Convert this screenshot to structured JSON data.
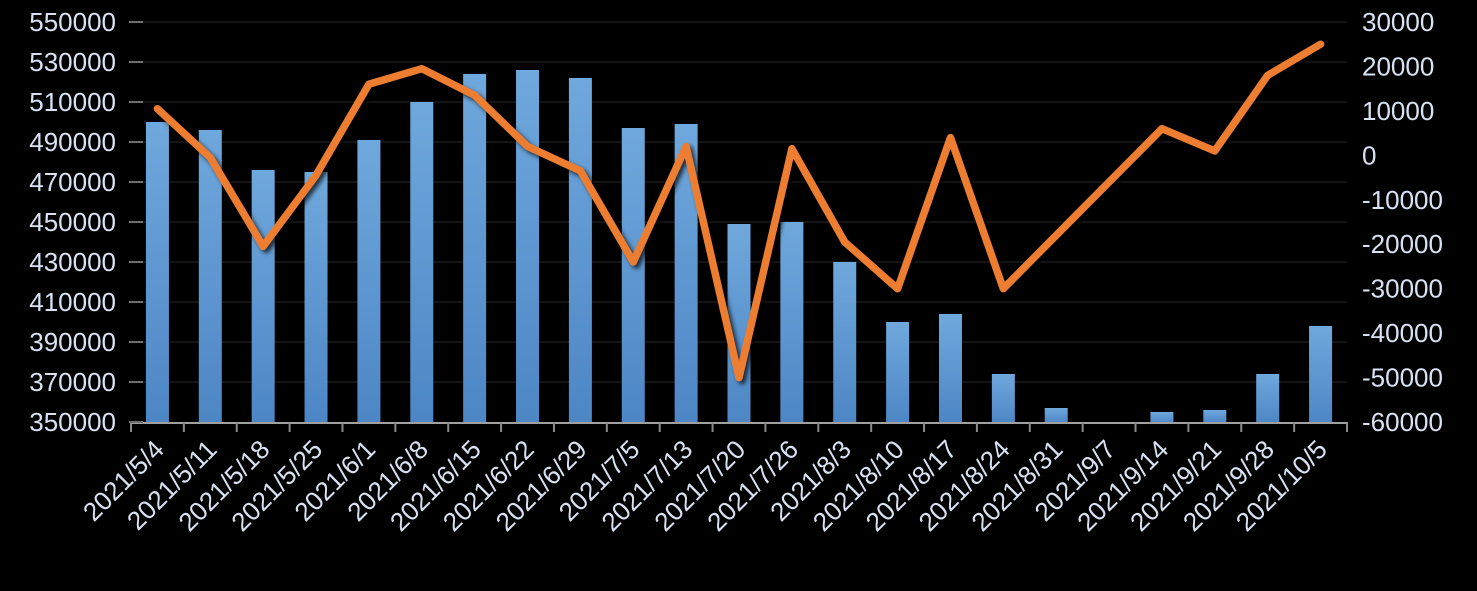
{
  "chart_data": {
    "type": "bar",
    "subtype": "combo-bar-line-dual-axis",
    "title": "",
    "xlabel": "",
    "ylabel": "",
    "background": "#000000",
    "grid": true,
    "legend": "none",
    "categories": [
      "2021/5/4",
      "2021/5/11",
      "2021/5/18",
      "2021/5/25",
      "2021/6/1",
      "2021/6/8",
      "2021/6/15",
      "2021/6/22",
      "2021/6/29",
      "2021/7/5",
      "2021/7/13",
      "2021/7/20",
      "2021/7/26",
      "2021/8/3",
      "2021/8/10",
      "2021/8/17",
      "2021/8/24",
      "2021/8/31",
      "2021/9/7",
      "2021/9/14",
      "2021/9/21",
      "2021/9/28",
      "2021/10/5"
    ],
    "series": [
      {
        "name": "bars-primary-axis",
        "type": "bar",
        "axis": "left",
        "color_top": "#6fa8dc",
        "color_bottom": "#4d86c5",
        "values": [
          500000,
          496000,
          476000,
          475000,
          491000,
          510000,
          524000,
          526000,
          522000,
          497000,
          499000,
          449000,
          450000,
          430000,
          400000,
          404000,
          374000,
          357000,
          350000,
          355000,
          356000,
          374000,
          398000
        ]
      },
      {
        "name": "line-secondary-axis",
        "type": "line",
        "axis": "right",
        "color": "#ed7d31",
        "values": [
          10500,
          -500,
          -20500,
          -4500,
          16000,
          19500,
          13500,
          2000,
          -3500,
          -24000,
          2000,
          -50000,
          1500,
          -19500,
          -30000,
          4000,
          -30000,
          -18000,
          -6000,
          6000,
          1000,
          18000,
          25000
        ]
      }
    ],
    "left_axis": {
      "min": 350000,
      "max": 550000,
      "step": 20000,
      "ticks": [
        550000,
        530000,
        510000,
        490000,
        470000,
        450000,
        430000,
        410000,
        390000,
        370000,
        350000
      ]
    },
    "right_axis": {
      "min": -60000,
      "max": 30000,
      "step": 10000,
      "ticks": [
        30000,
        20000,
        10000,
        0,
        -10000,
        -20000,
        -30000,
        -40000,
        -50000,
        -60000
      ]
    },
    "colors": {
      "grid": "#292929",
      "axis": "#a0a0a0",
      "labels": "#d9e2f2",
      "bar": "#5b94d1",
      "line": "#ed7d31"
    }
  }
}
